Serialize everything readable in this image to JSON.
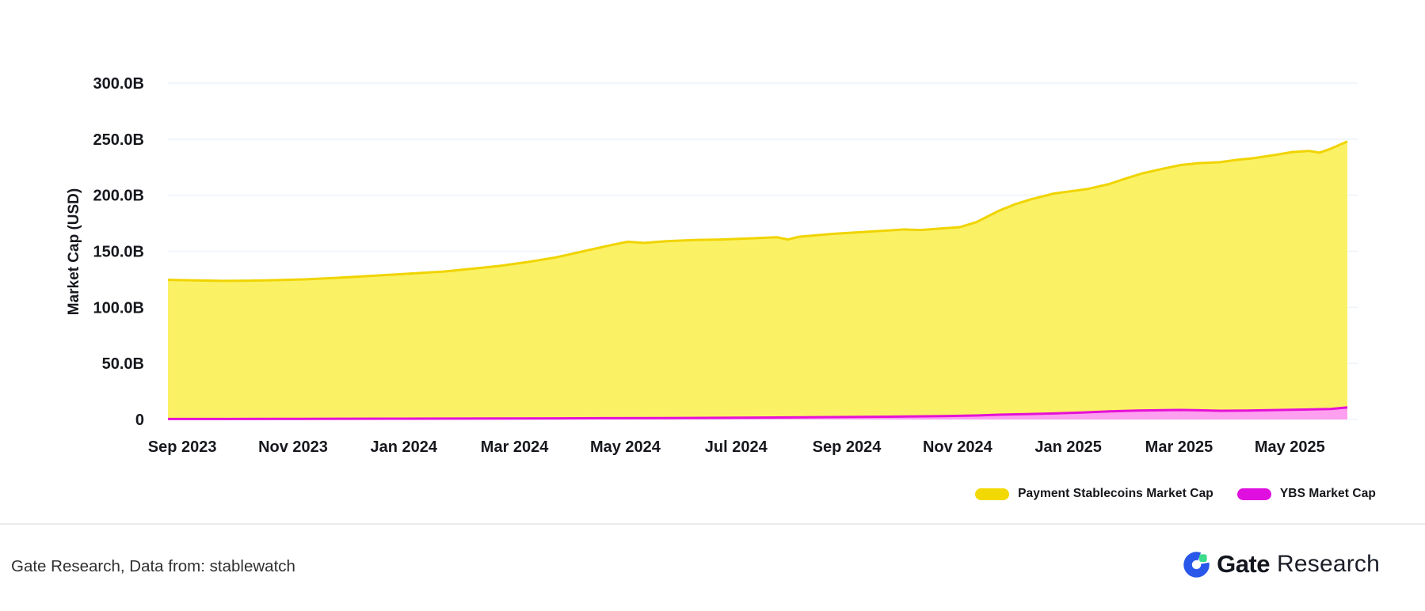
{
  "chart_data": {
    "type": "area",
    "title": "",
    "ylabel": "Market Cap (USD)",
    "x_axis": {
      "unit": "month index from Sep 2023",
      "domain": [
        0,
        21.3
      ],
      "ticks": [
        {
          "label": "Sep 2023",
          "x": 0.26
        },
        {
          "label": "Nov 2023",
          "x": 2.26
        },
        {
          "label": "Jan 2024",
          "x": 4.26
        },
        {
          "label": "Mar 2024",
          "x": 6.26
        },
        {
          "label": "May 2024",
          "x": 8.26
        },
        {
          "label": "Jul 2024",
          "x": 10.26
        },
        {
          "label": "Sep 2024",
          "x": 12.26
        },
        {
          "label": "Nov 2024",
          "x": 14.26
        },
        {
          "label": "Jan 2025",
          "x": 16.26
        },
        {
          "label": "Mar 2025",
          "x": 18.26
        },
        {
          "label": "May 2025",
          "x": 20.26
        }
      ]
    },
    "y_axis": {
      "unit": "USD billions",
      "ylim": [
        0,
        300
      ],
      "ticks": [
        {
          "label": "300.0B",
          "value": 300
        },
        {
          "label": "250.0B",
          "value": 250
        },
        {
          "label": "200.0B",
          "value": 200
        },
        {
          "label": "150.0B",
          "value": 150
        },
        {
          "label": "100.0B",
          "value": 100
        },
        {
          "label": "50.0B",
          "value": 50
        },
        {
          "label": "0",
          "value": 0
        }
      ]
    },
    "grid": {
      "horizontal": true,
      "vertical": false
    },
    "legend_position": "bottom-right",
    "series": [
      {
        "name": "Payment Stablecoins Market Cap",
        "unit": "USD billions",
        "fill": "#FBF164",
        "stroke": "#F0D400",
        "points": [
          [
            0,
            124.5
          ],
          [
            0.5,
            124.0
          ],
          [
            1,
            123.6
          ],
          [
            1.5,
            123.8
          ],
          [
            2,
            124.3
          ],
          [
            2.5,
            125.0
          ],
          [
            3,
            126.2
          ],
          [
            3.5,
            127.6
          ],
          [
            4,
            129.0
          ],
          [
            4.5,
            130.5
          ],
          [
            5,
            132.0
          ],
          [
            5.5,
            134.5
          ],
          [
            6,
            137.0
          ],
          [
            6.5,
            140.5
          ],
          [
            7,
            144.5
          ],
          [
            7.5,
            150.0
          ],
          [
            8,
            155.5
          ],
          [
            8.3,
            158.5
          ],
          [
            8.6,
            157.5
          ],
          [
            9,
            159.0
          ],
          [
            9.5,
            160.0
          ],
          [
            10,
            160.5
          ],
          [
            10.5,
            161.5
          ],
          [
            11,
            162.5
          ],
          [
            11.2,
            160.5
          ],
          [
            11.4,
            163.0
          ],
          [
            12,
            165.5
          ],
          [
            12.5,
            167.0
          ],
          [
            13,
            168.5
          ],
          [
            13.3,
            169.5
          ],
          [
            13.6,
            169.0
          ],
          [
            14,
            170.5
          ],
          [
            14.3,
            171.5
          ],
          [
            14.6,
            176.0
          ],
          [
            15,
            186.0
          ],
          [
            15.3,
            192.0
          ],
          [
            15.6,
            196.5
          ],
          [
            16,
            201.5
          ],
          [
            16.3,
            203.5
          ],
          [
            16.6,
            205.5
          ],
          [
            17,
            210.0
          ],
          [
            17.3,
            215.0
          ],
          [
            17.6,
            219.5
          ],
          [
            18,
            224.0
          ],
          [
            18.3,
            227.0
          ],
          [
            18.6,
            228.5
          ],
          [
            19,
            229.5
          ],
          [
            19.3,
            231.5
          ],
          [
            19.6,
            233.0
          ],
          [
            20,
            236.0
          ],
          [
            20.3,
            238.5
          ],
          [
            20.6,
            239.5
          ],
          [
            20.8,
            238.0
          ],
          [
            21,
            241.5
          ],
          [
            21.3,
            248.0
          ]
        ]
      },
      {
        "name": "YBS Market Cap",
        "unit": "USD billions",
        "fill": "#FF9FF0",
        "stroke": "#E511D6",
        "points": [
          [
            0,
            0.4
          ],
          [
            1,
            0.4
          ],
          [
            2,
            0.5
          ],
          [
            3,
            0.6
          ],
          [
            4,
            0.7
          ],
          [
            5,
            0.8
          ],
          [
            6,
            0.9
          ],
          [
            7,
            1.0
          ],
          [
            8,
            1.1
          ],
          [
            9,
            1.3
          ],
          [
            10,
            1.5
          ],
          [
            11,
            1.8
          ],
          [
            12,
            2.1
          ],
          [
            13,
            2.5
          ],
          [
            14,
            3.0
          ],
          [
            14.6,
            3.5
          ],
          [
            15,
            4.2
          ],
          [
            15.5,
            4.8
          ],
          [
            16,
            5.4
          ],
          [
            16.5,
            6.2
          ],
          [
            17,
            7.2
          ],
          [
            17.5,
            7.9
          ],
          [
            18,
            8.3
          ],
          [
            18.3,
            8.5
          ],
          [
            18.6,
            8.2
          ],
          [
            19,
            7.8
          ],
          [
            19.5,
            8.0
          ],
          [
            20,
            8.4
          ],
          [
            20.5,
            8.8
          ],
          [
            21,
            9.3
          ],
          [
            21.3,
            10.8
          ]
        ]
      }
    ]
  },
  "legend": {
    "items": [
      {
        "label": "Payment Stablecoins Market Cap",
        "color": "#F2D903"
      },
      {
        "label": "YBS Market Cap",
        "color": "#DF0FDF"
      }
    ]
  },
  "footer": {
    "source_note": "Gate Research, Data from: stablewatch",
    "logo": {
      "brand": "Gate",
      "suffix": "Research"
    }
  },
  "style": {
    "grid_color": "#F1F6FB",
    "tick_text_color": "#16181D",
    "divider_color": "#EBEBEB",
    "footer_text_color": "#303030",
    "logo_blue": "#2857EA",
    "logo_green": "#3DDC8C",
    "logo_text_color": "#14161F"
  }
}
